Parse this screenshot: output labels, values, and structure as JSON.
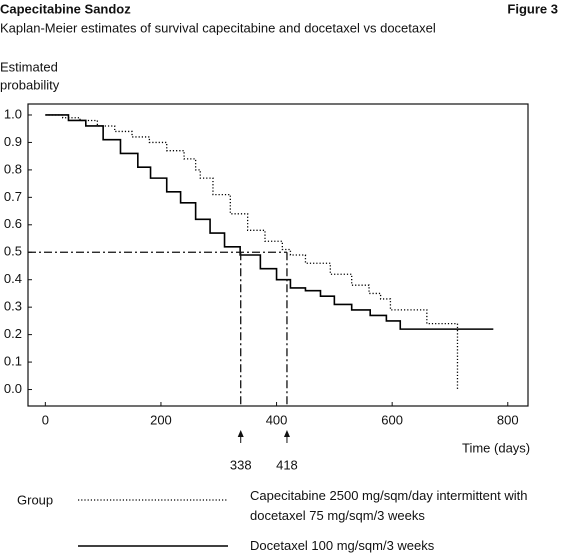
{
  "header": {
    "title": "Capecitabine Sandoz",
    "figure": "Figure 3"
  },
  "chart_data": {
    "type": "step",
    "title": "Kaplan-Meier estimates of survival capecitabine and docetaxel vs docetaxel",
    "ylabel": [
      "Estimated",
      "probability"
    ],
    "xlabel": "Time (days)",
    "xlim": [
      -30,
      835
    ],
    "ylim": [
      -0.06,
      1.04
    ],
    "xticks": [
      0,
      200,
      400,
      600,
      800
    ],
    "yticks": [
      {
        "value": 0,
        "label": "0.0"
      },
      0.1,
      0.2,
      0.3,
      0.4,
      0.5,
      0.6,
      0.7,
      0.8,
      0.9,
      {
        "value": 1,
        "label": "1.0"
      }
    ],
    "grid": false,
    "legend_title": "Group",
    "series": [
      {
        "name": "Capecitabine 2500 mg/sqm/day intermittent with docetaxel 75 mg/sqm/3 weeks",
        "color": "#000000",
        "dash": "dotted",
        "x": [
          0,
          30,
          60,
          90,
          120,
          150,
          180,
          210,
          240,
          260,
          268,
          290,
          320,
          350,
          380,
          410,
          424,
          450,
          493,
          530,
          560,
          580,
          597,
          660,
          713,
          713
        ],
        "values": [
          1.0,
          0.99,
          0.98,
          0.96,
          0.94,
          0.92,
          0.9,
          0.87,
          0.84,
          0.8,
          0.77,
          0.71,
          0.64,
          0.58,
          0.54,
          0.51,
          0.49,
          0.46,
          0.42,
          0.38,
          0.35,
          0.33,
          0.29,
          0.24,
          0.24,
          0.0
        ]
      },
      {
        "name": "Docetaxel 100 mg/sqm/3 weeks",
        "color": "#000000",
        "dash": "solid",
        "x": [
          0,
          40,
          70,
          100,
          130,
          160,
          182,
          210,
          234,
          260,
          285,
          310,
          337,
          372,
          400,
          424,
          450,
          476,
          500,
          530,
          562,
          590,
          614,
          775
        ],
        "values": [
          1.0,
          0.98,
          0.96,
          0.91,
          0.86,
          0.81,
          0.77,
          0.72,
          0.68,
          0.62,
          0.57,
          0.52,
          0.49,
          0.44,
          0.4,
          0.37,
          0.36,
          0.34,
          0.31,
          0.29,
          0.27,
          0.25,
          0.22,
          0.22
        ]
      }
    ],
    "median_prob": 0.5,
    "median_times": [
      338,
      418
    ]
  }
}
